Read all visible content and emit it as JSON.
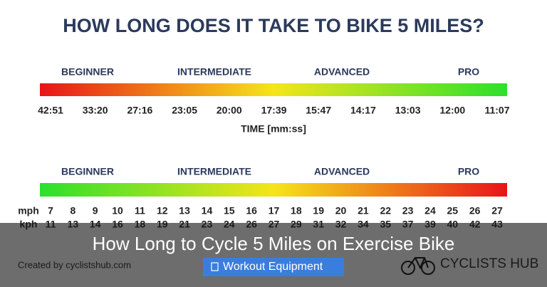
{
  "title": "HOW LONG DOES IT TAKE TO BIKE 5 MILES?",
  "time_scale": {
    "levels": [
      "BEGINNER",
      "INTERMEDIATE",
      "ADVANCED",
      "PRO"
    ],
    "times": [
      "42:51",
      "33:20",
      "27:16",
      "23:05",
      "20:00",
      "17:39",
      "15:47",
      "14:17",
      "13:03",
      "12:00",
      "11:07"
    ],
    "axis_label": "TIME [mm:ss]"
  },
  "speed_scale": {
    "levels": [
      "BEGINNER",
      "INTERMEDIATE",
      "ADVANCED",
      "PRO"
    ],
    "mph_label": "mph",
    "mph": [
      7,
      8,
      9,
      10,
      11,
      12,
      13,
      14,
      15,
      16,
      17,
      18,
      19,
      20,
      21,
      22,
      23,
      24,
      25,
      26,
      27
    ],
    "kph_label": "kph",
    "kph": [
      11,
      13,
      14,
      16,
      18,
      19,
      21,
      23,
      24,
      26,
      27,
      29,
      31,
      32,
      34,
      35,
      37,
      39,
      40,
      42,
      43
    ]
  },
  "credit": "Created by cyclistshub.com",
  "logo": "CYCLISTS HUB",
  "caption": "How Long to Cycle 5 Miles on Exercise Bike",
  "button": "Workout Equipment"
}
